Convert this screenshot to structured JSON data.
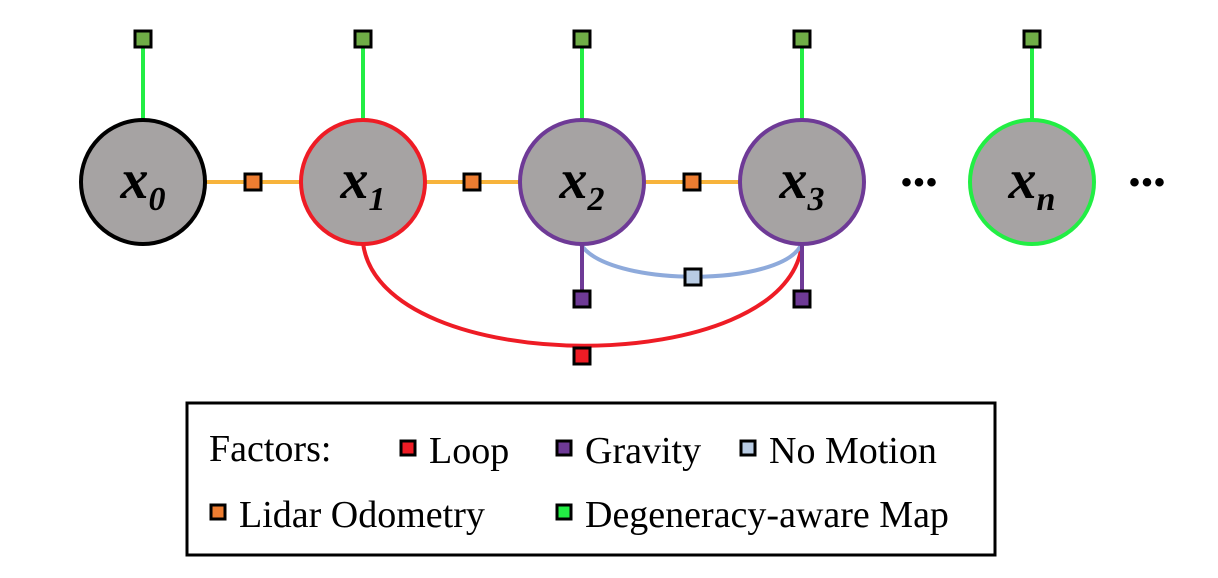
{
  "colors": {
    "node_fill": "#a6a3a3",
    "loop": "#ee1c25",
    "gravity": "#6e3a96",
    "no_motion": "#b9cce4",
    "no_motion_edge": "#8eaadb",
    "lidar_odometry": "#ed7d31",
    "lidar_edge": "#f7b33b",
    "map": "#70ad47",
    "map_edge": "#22ee44"
  },
  "nodes": [
    {
      "var": "x",
      "sub": "0",
      "border": "#000000"
    },
    {
      "var": "x",
      "sub": "1",
      "border": "#ee1c25"
    },
    {
      "var": "x",
      "sub": "2",
      "border": "#6e3a96"
    },
    {
      "var": "x",
      "sub": "3",
      "border": "#6e3a96"
    },
    {
      "var": "x",
      "sub": "n",
      "border": "#22ee44"
    }
  ],
  "ellipsis": "•••",
  "legend": {
    "title": "Factors:",
    "loop": "Loop",
    "gravity": "Gravity",
    "no_motion": "No Motion",
    "lidar_odometry": "Lidar Odometry",
    "degeneracy_map": "Degeneracy-aware Map"
  }
}
